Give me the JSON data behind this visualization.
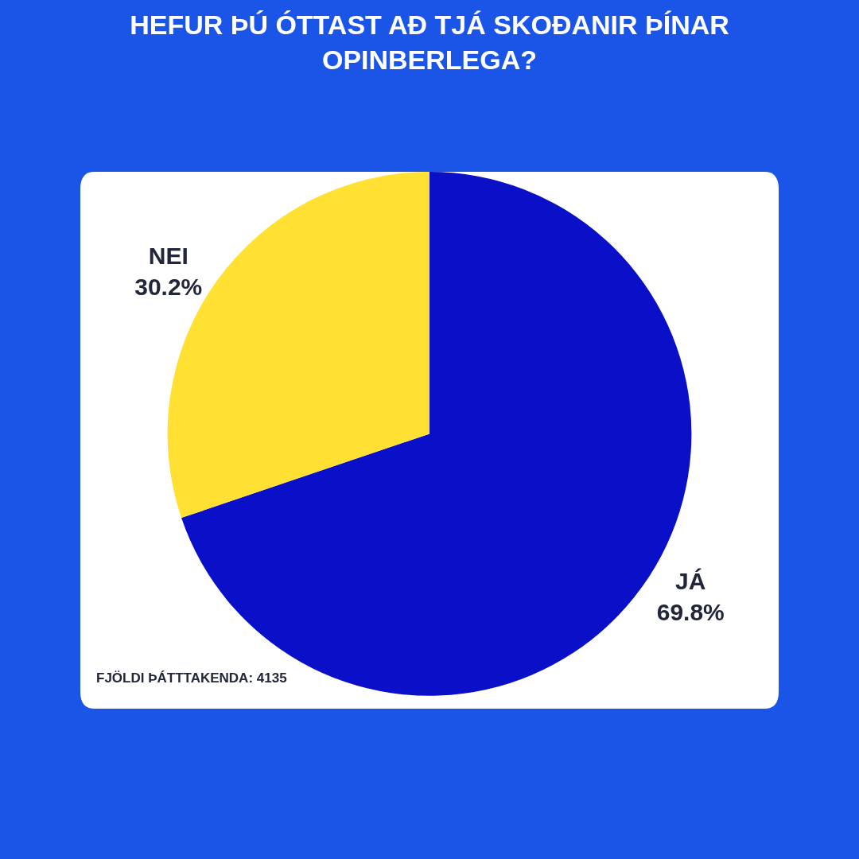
{
  "chart_data": {
    "type": "pie",
    "title": "HEFUR ÞÚ ÓTTAST AÐ TJÁ SKOÐANIR ÞÍNAR OPINBERLEGA?",
    "categories": [
      "JÁ",
      "NEI"
    ],
    "values": [
      69.8,
      30.2
    ],
    "value_labels": [
      "69.8%",
      "30.2%"
    ],
    "colors": [
      "#0a10c8",
      "#ffe033"
    ],
    "annotations": [
      "FJÖLDI ÞÁTTTAKENDA: 4135"
    ],
    "legend": false
  }
}
